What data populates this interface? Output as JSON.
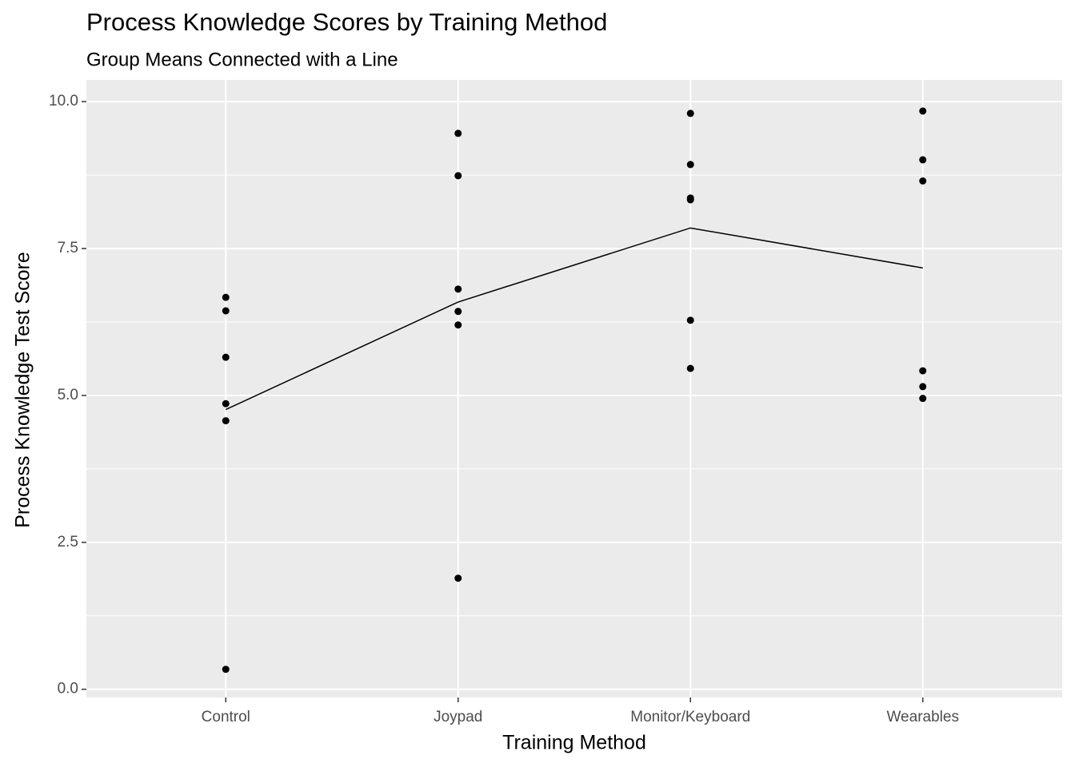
{
  "chart_data": {
    "type": "strip",
    "title": "Process Knowledge Scores by Training Method",
    "subtitle": "Group Means Connected with a Line",
    "x_label": "Training Method",
    "y_label": "Process Knowledge Test Score",
    "categories": [
      "Control",
      "Joypad",
      "Monitor/Keyboard",
      "Wearables"
    ],
    "points": [
      [
        6.67,
        6.44,
        5.65,
        4.86,
        4.57,
        0.34
      ],
      [
        9.46,
        8.74,
        6.81,
        6.43,
        6.2,
        1.89
      ],
      [
        9.8,
        8.93,
        8.36,
        8.33,
        6.28,
        5.46
      ],
      [
        9.84,
        9.01,
        8.65,
        5.42,
        5.15,
        4.95
      ]
    ],
    "means": [
      4.76,
      6.59,
      7.85,
      7.17
    ],
    "color": "#000000",
    "ylim": [
      -0.14,
      10.37
    ],
    "yticks": [
      {
        "value": 0,
        "label": "0.0"
      },
      {
        "value": 2.5,
        "label": "2.5"
      },
      {
        "value": 5,
        "label": "5.0"
      },
      {
        "value": 7.5,
        "label": "7.5"
      },
      {
        "value": 10,
        "label": "10.0"
      }
    ],
    "grid": true
  }
}
